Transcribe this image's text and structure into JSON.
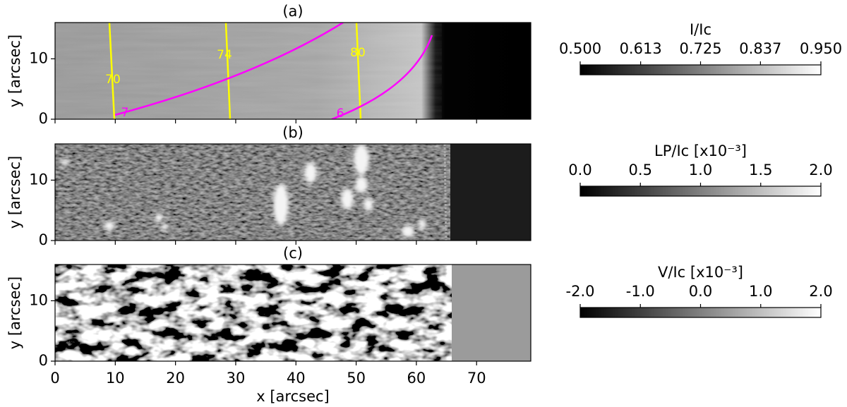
{
  "chart_data": [
    {
      "type": "heatmap",
      "title": "(a)",
      "ylabel": "y [arcsec]",
      "ylim": [
        0,
        16
      ],
      "yticks": [
        0,
        10
      ],
      "colorbar": {
        "label": "I/Ic",
        "lim": [
          0.5,
          0.95
        ],
        "ticks": [
          {
            "value": 0.5,
            "label": "0.500"
          },
          0.613,
          0.725,
          0.837,
          {
            "value": 0.95,
            "label": "0.950"
          }
        ]
      },
      "contours": [
        {
          "color": "#ffff00",
          "levels": [
            70,
            74,
            80
          ]
        },
        {
          "color": "#ff00ff",
          "levels": [
            7,
            6
          ]
        }
      ]
    },
    {
      "type": "heatmap",
      "title": "(b)",
      "ylabel": "y [arcsec]",
      "ylim": [
        0,
        16
      ],
      "yticks": [
        0,
        10
      ],
      "colorbar": {
        "label": "LP/Ic [x10⁻³]",
        "lim": [
          0,
          2
        ],
        "ticks": [
          {
            "value": 0,
            "label": "0.0"
          },
          0.5,
          {
            "value": 1,
            "label": "1.0"
          },
          1.5,
          {
            "value": 2,
            "label": "2.0"
          }
        ]
      }
    },
    {
      "type": "heatmap",
      "title": "(c)",
      "ylabel": "y [arcsec]",
      "xlabel": "x [arcsec]",
      "xlim": [
        0,
        79
      ],
      "xticks": [
        0,
        10,
        20,
        30,
        40,
        50,
        60,
        70
      ],
      "ylim": [
        0,
        16
      ],
      "yticks": [
        0,
        10
      ],
      "colorbar": {
        "label": "V/Ic [x10⁻³]",
        "lim": [
          -2,
          2
        ],
        "ticks": [
          {
            "value": -2,
            "label": "-2.0"
          },
          {
            "value": -1,
            "label": "-1.0"
          },
          {
            "value": 0,
            "label": "0.0"
          },
          {
            "value": 1,
            "label": "1.0"
          },
          {
            "value": 2,
            "label": "2.0"
          }
        ]
      }
    }
  ]
}
